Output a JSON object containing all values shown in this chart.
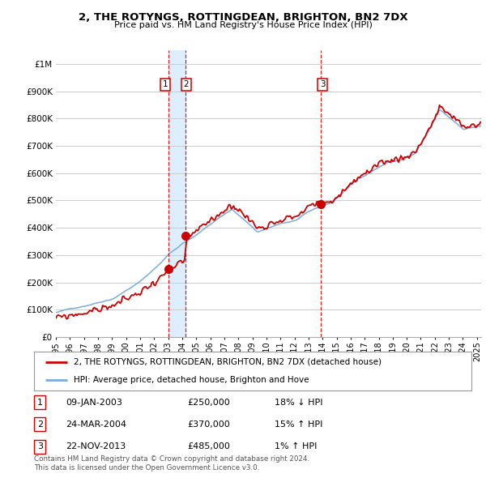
{
  "title": "2, THE ROTYNGS, ROTTINGDEAN, BRIGHTON, BN2 7DX",
  "subtitle": "Price paid vs. HM Land Registry's House Price Index (HPI)",
  "ylabel_ticks": [
    "£0",
    "£100K",
    "£200K",
    "£300K",
    "£400K",
    "£500K",
    "£600K",
    "£700K",
    "£800K",
    "£900K",
    "£1M"
  ],
  "ytick_values": [
    0,
    100000,
    200000,
    300000,
    400000,
    500000,
    600000,
    700000,
    800000,
    900000,
    1000000
  ],
  "ylim": [
    0,
    1050000
  ],
  "xlim_start": 1995.0,
  "xlim_end": 2025.3,
  "xtick_years": [
    1995,
    1996,
    1997,
    1998,
    1999,
    2000,
    2001,
    2002,
    2003,
    2004,
    2005,
    2006,
    2007,
    2008,
    2009,
    2010,
    2011,
    2012,
    2013,
    2014,
    2015,
    2016,
    2017,
    2018,
    2019,
    2020,
    2021,
    2022,
    2023,
    2024,
    2025
  ],
  "purchase_points": [
    {
      "label": "1",
      "date_num": 2003.03,
      "price": 250000
    },
    {
      "label": "2",
      "date_num": 2004.23,
      "price": 370000
    },
    {
      "label": "3",
      "date_num": 2013.9,
      "price": 485000
    }
  ],
  "vline_dates": [
    2003.03,
    2004.23,
    2013.9
  ],
  "shade_start": 2003.03,
  "shade_end": 2004.23,
  "legend_line1": "2, THE ROTYNGS, ROTTINGDEAN, BRIGHTON, BN2 7DX (detached house)",
  "legend_line2": "HPI: Average price, detached house, Brighton and Hove",
  "table_rows": [
    {
      "num": "1",
      "date": "09-JAN-2003",
      "price": "£250,000",
      "change": "18% ↓ HPI"
    },
    {
      "num": "2",
      "date": "24-MAR-2004",
      "price": "£370,000",
      "change": "15% ↑ HPI"
    },
    {
      "num": "3",
      "date": "22-NOV-2013",
      "price": "£485,000",
      "change": "1% ↑ HPI"
    }
  ],
  "footer": "Contains HM Land Registry data © Crown copyright and database right 2024.\nThis data is licensed under the Open Government Licence v3.0.",
  "red_color": "#cc0000",
  "blue_color": "#7aaddb",
  "vline_color": "#cc0000",
  "shade_color": "#ddeeff",
  "bg_color": "#ffffff",
  "grid_color": "#cccccc"
}
